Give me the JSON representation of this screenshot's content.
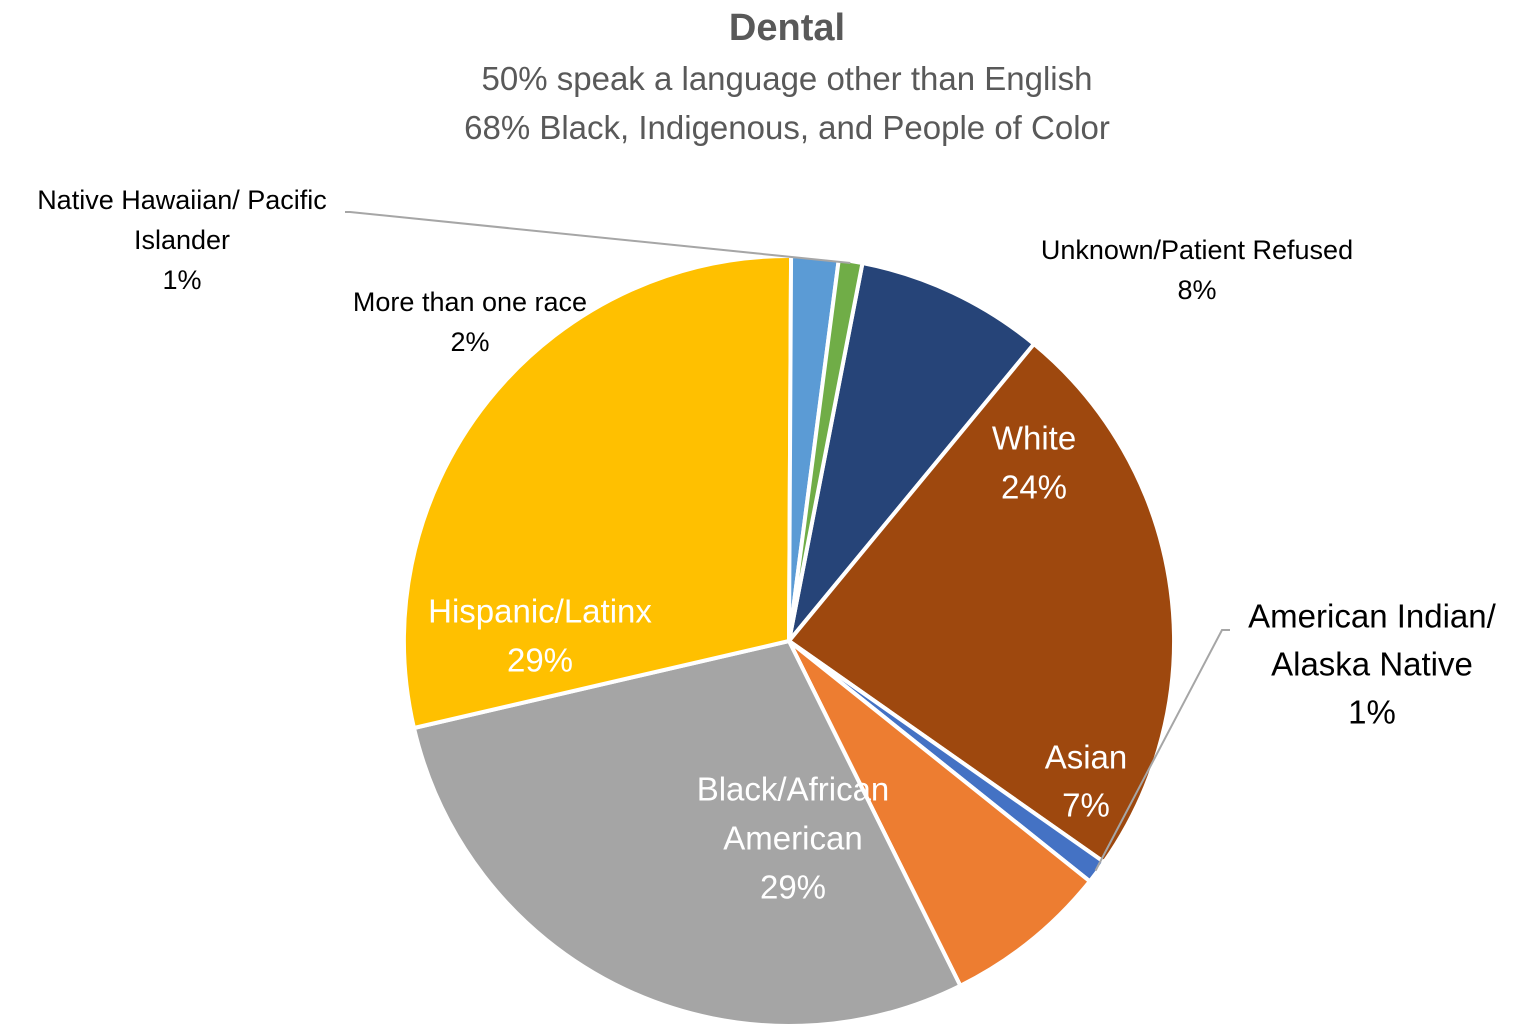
{
  "chart_data": {
    "type": "pie",
    "title": "Dental",
    "subtitle_lines": [
      "50% speak a language other than English",
      "68% Black, Indigenous, and People of Color"
    ],
    "slices": [
      {
        "label_lines": [
          "Unknown/Patient Refused"
        ],
        "value_label": "8%",
        "value": 8,
        "color": "#264478"
      },
      {
        "label_lines": [
          "White"
        ],
        "value_label": "24%",
        "value": 24,
        "color": "#9E480E"
      },
      {
        "label_lines": [
          "American Indian/",
          "Alaska Native"
        ],
        "value_label": "1%",
        "value": 1,
        "color": "#4472C4"
      },
      {
        "label_lines": [
          "Asian"
        ],
        "value_label": "7%",
        "value": 7,
        "color": "#ED7D31"
      },
      {
        "label_lines": [
          "Black/African",
          "American"
        ],
        "value_label": "29%",
        "value": 29,
        "color": "#A5A5A5"
      },
      {
        "label_lines": [
          "Hispanic/Latinx"
        ],
        "value_label": "29%",
        "value": 29,
        "color": "#FFC000"
      },
      {
        "label_lines": [
          "More than one race"
        ],
        "value_label": "2%",
        "value": 2,
        "color": "#5B9BD5"
      },
      {
        "label_lines": [
          "Native Hawaiian/ Pacific",
          "Islander"
        ],
        "value_label": "1%",
        "value": 1,
        "color": "#70AD47"
      }
    ]
  }
}
